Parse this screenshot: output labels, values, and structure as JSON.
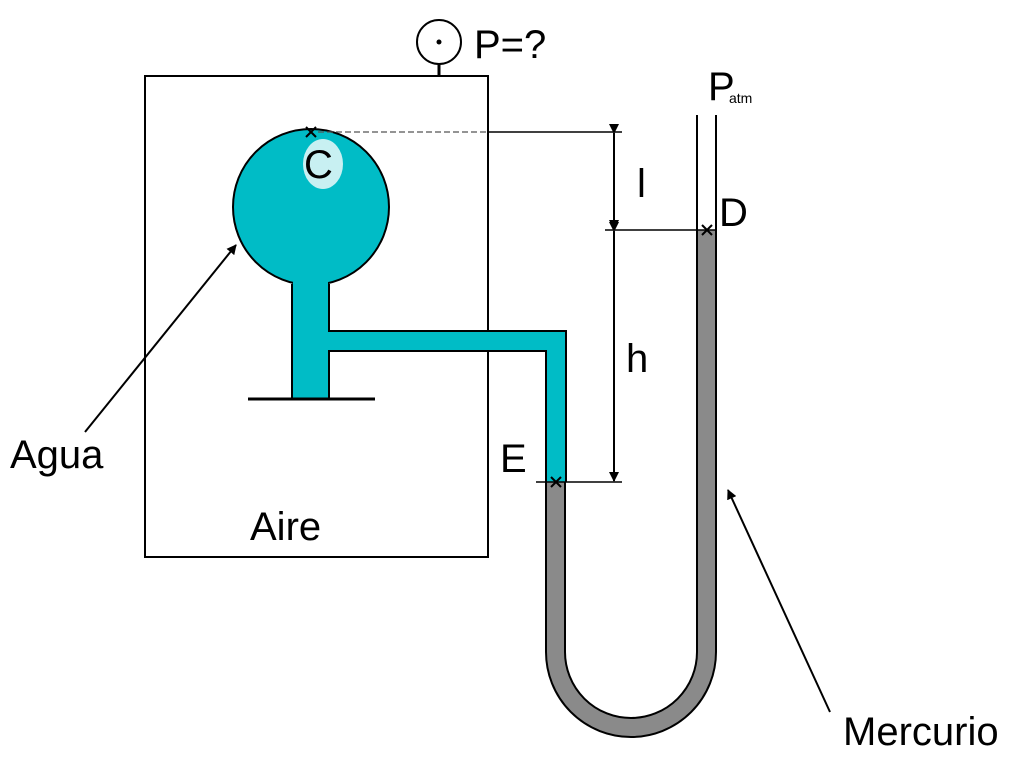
{
  "labels": {
    "gauge": "P=?",
    "patm_main": "P",
    "patm_sub": "atm",
    "point_c": "C",
    "point_d": "D",
    "point_e": "E",
    "dim_l": "l",
    "dim_h": "h",
    "agua": "Agua",
    "aire": "Aire",
    "mercurio": "Mercurio"
  },
  "colors": {
    "water": "#00bcc6",
    "water_highlight": "#c8f0f2",
    "mercury": "#8a8a8a",
    "stroke": "#000000"
  },
  "icons": {
    "gauge": "pressure-gauge-icon"
  }
}
